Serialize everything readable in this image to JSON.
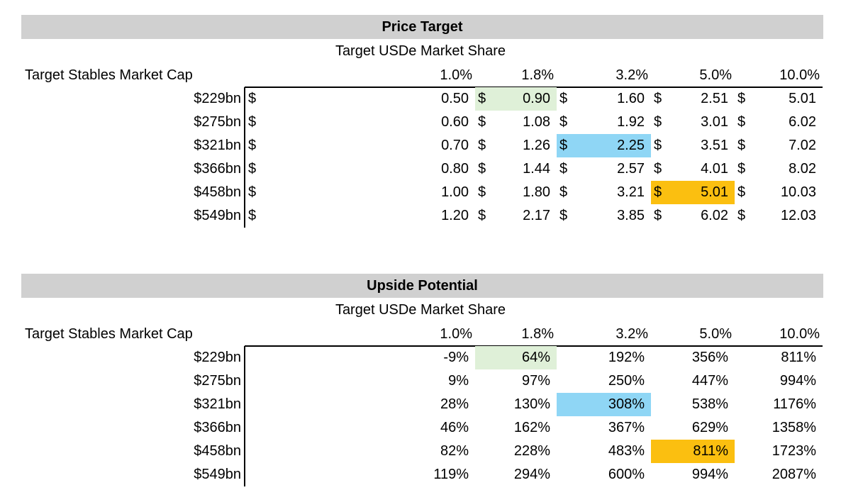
{
  "price_target": {
    "title": "Price Target",
    "col_group_label": "Target USDe Market Share",
    "row_group_label": "Target Stables Market Cap",
    "columns": [
      "1.0%",
      "1.8%",
      "3.2%",
      "5.0%",
      "10.0%"
    ],
    "currency_symbol": "$",
    "rows": [
      {
        "label": "$229bn",
        "values": [
          "0.50",
          "0.90",
          "1.60",
          "2.51",
          "5.01"
        ]
      },
      {
        "label": "$275bn",
        "values": [
          "0.60",
          "1.08",
          "1.92",
          "3.01",
          "6.02"
        ]
      },
      {
        "label": "$321bn",
        "values": [
          "0.70",
          "1.26",
          "2.25",
          "3.51",
          "7.02"
        ]
      },
      {
        "label": "$366bn",
        "values": [
          "0.80",
          "1.44",
          "2.57",
          "4.01",
          "8.02"
        ]
      },
      {
        "label": "$458bn",
        "values": [
          "1.00",
          "1.80",
          "3.21",
          "5.01",
          "10.03"
        ]
      },
      {
        "label": "$549bn",
        "values": [
          "1.20",
          "2.17",
          "3.85",
          "6.02",
          "12.03"
        ]
      }
    ]
  },
  "upside_potential": {
    "title": "Upside Potential",
    "col_group_label": "Target USDe Market Share",
    "row_group_label": "Target Stables Market Cap",
    "columns": [
      "1.0%",
      "1.8%",
      "3.2%",
      "5.0%",
      "10.0%"
    ],
    "rows": [
      {
        "label": "$229bn",
        "values": [
          "-9%",
          "64%",
          "192%",
          "356%",
          "811%"
        ]
      },
      {
        "label": "$275bn",
        "values": [
          "9%",
          "97%",
          "250%",
          "447%",
          "994%"
        ]
      },
      {
        "label": "$321bn",
        "values": [
          "28%",
          "130%",
          "308%",
          "538%",
          "1176%"
        ]
      },
      {
        "label": "$366bn",
        "values": [
          "46%",
          "162%",
          "367%",
          "629%",
          "1358%"
        ]
      },
      {
        "label": "$458bn",
        "values": [
          "82%",
          "228%",
          "483%",
          "811%",
          "1723%"
        ]
      },
      {
        "label": "$549bn",
        "values": [
          "119%",
          "294%",
          "600%",
          "994%",
          "2087%"
        ]
      }
    ]
  },
  "highlights": [
    {
      "row": 0,
      "col": 1,
      "color": "#dff0d8"
    },
    {
      "row": 2,
      "col": 2,
      "color": "#8fd6f5"
    },
    {
      "row": 4,
      "col": 3,
      "color": "#fbbf10"
    }
  ]
}
